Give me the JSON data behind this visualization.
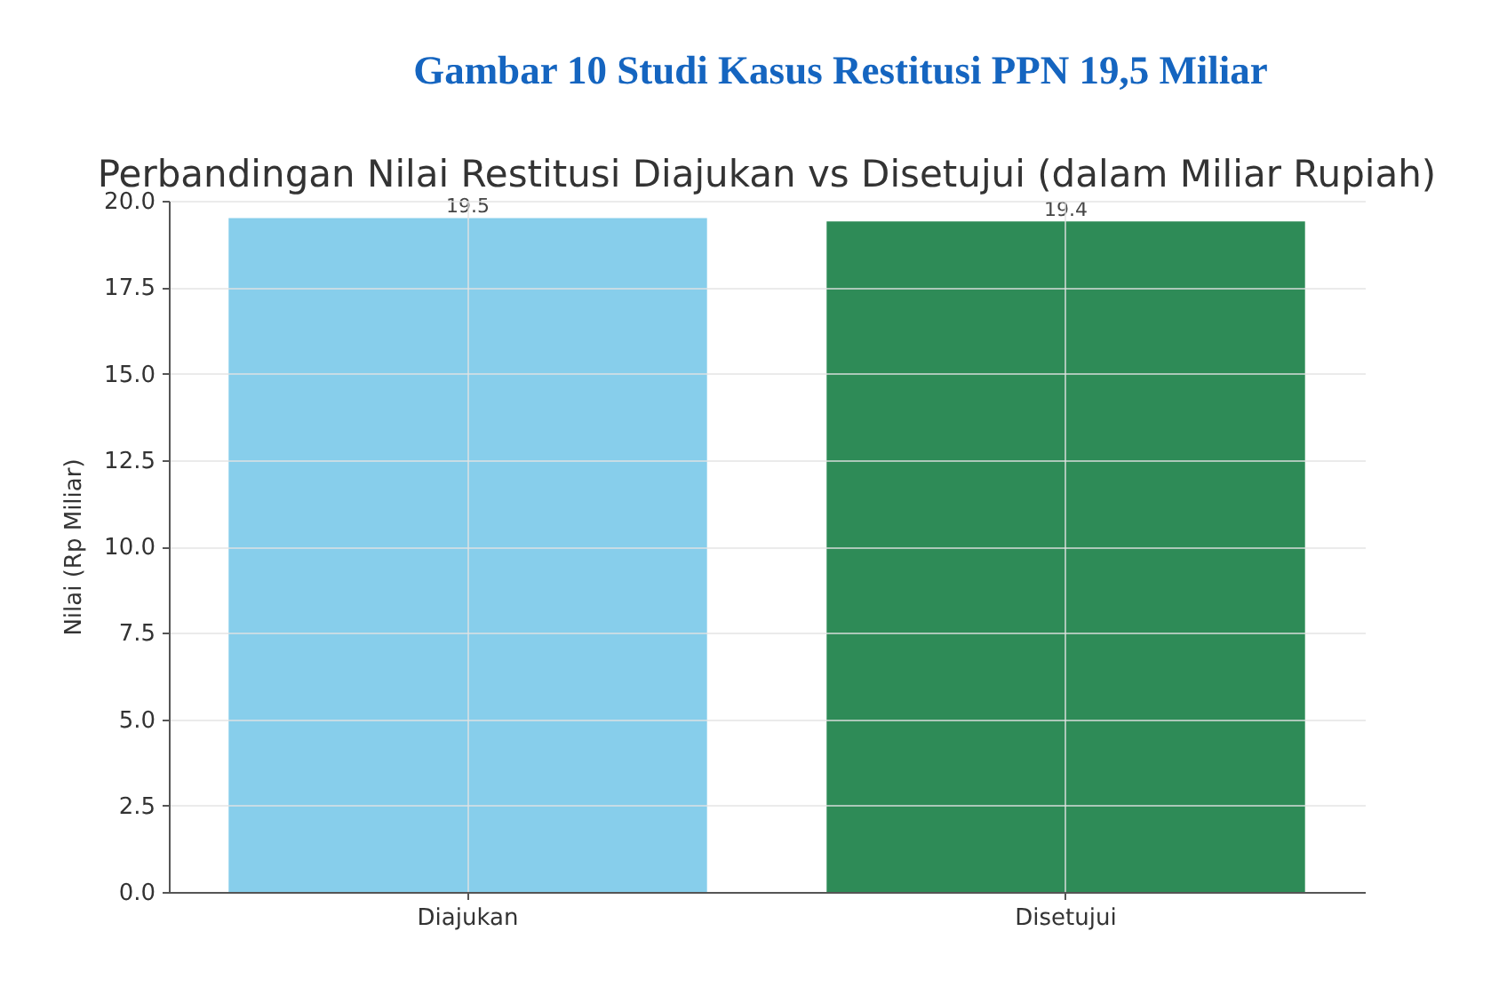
{
  "chart_data": {
    "type": "bar",
    "title": "Perbandingan Nilai Restitusi Diajukan vs Disetujui (dalam Miliar Rupiah)",
    "ylabel": "Nilai (Rp Miliar)",
    "annotations": [
      "Gambar 10  Studi Kasus Restitusi PPN 19,5 Miliar"
    ],
    "categories": [
      "Diajukan",
      "Disetujui"
    ],
    "values": [
      19.5,
      19.4
    ],
    "colors": [
      "#87ceeb",
      "#2e8b57"
    ],
    "ylim": [
      0,
      20
    ],
    "yticks": [
      {
        "value": 0,
        "label": "0.0"
      },
      2.5,
      {
        "value": 5,
        "label": "5.0"
      },
      7.5,
      {
        "value": 10,
        "label": "10.0"
      },
      12.5,
      {
        "value": 15,
        "label": "15.0"
      },
      17.5,
      {
        "value": 20,
        "label": "20.0"
      }
    ],
    "grid": true,
    "data_labels": true
  }
}
